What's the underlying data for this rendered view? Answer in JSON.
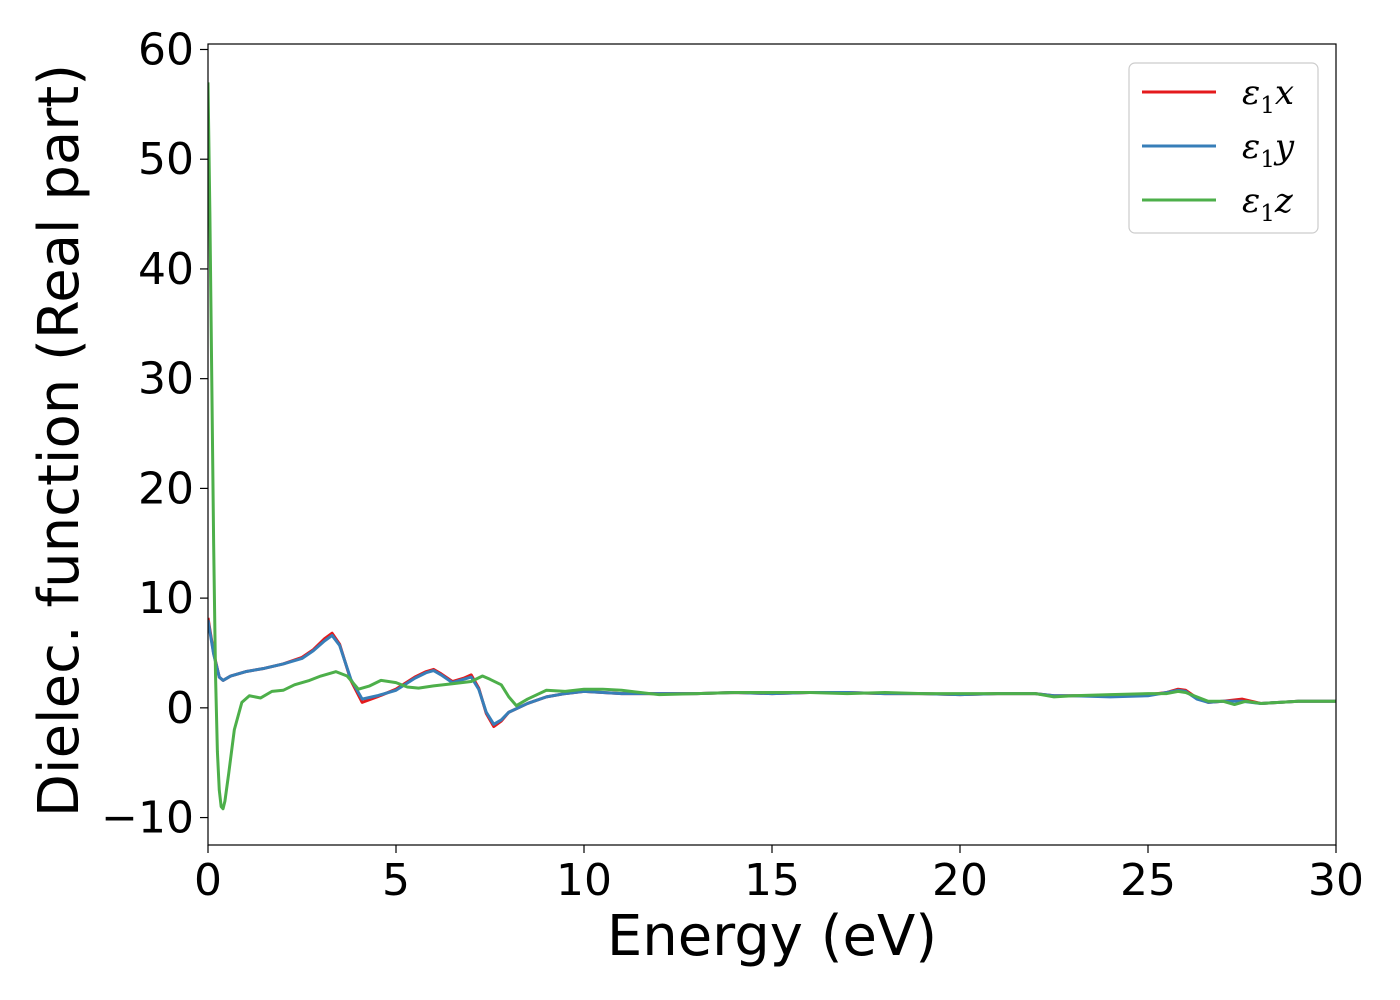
{
  "chart_data": {
    "type": "line",
    "title": "",
    "xlabel": "Energy (eV)",
    "ylabel": "Dielec. function (Real part)",
    "xlim": [
      0,
      30
    ],
    "ylim": [
      -12.5,
      60.5
    ],
    "xticks": [
      0,
      5,
      10,
      15,
      20,
      25,
      30
    ],
    "xtick_labels": [
      "0",
      "5",
      "10",
      "15",
      "20",
      "25",
      "30"
    ],
    "yticks": [
      -10,
      0,
      10,
      20,
      30,
      40,
      50,
      60
    ],
    "ytick_labels": [
      "−10",
      "0",
      "10",
      "20",
      "30",
      "40",
      "50",
      "60"
    ],
    "grid": false,
    "legend_position": "top-right",
    "series": [
      {
        "name": "ε₁x",
        "legend": {
          "base": "ε",
          "sub": "1",
          "var": "x"
        },
        "color": "#e41a1c",
        "x": [
          0.0,
          0.15,
          0.3,
          0.4,
          0.6,
          1.0,
          1.5,
          2.0,
          2.5,
          2.8,
          3.1,
          3.3,
          3.5,
          3.8,
          4.1,
          4.5,
          5.0,
          5.5,
          5.8,
          6.0,
          6.2,
          6.5,
          6.8,
          7.0,
          7.2,
          7.4,
          7.6,
          7.8,
          8.0,
          8.5,
          9.0,
          9.5,
          10.0,
          11.0,
          12.0,
          13.0,
          14.0,
          15.0,
          16.0,
          17.0,
          18.0,
          19.0,
          20.0,
          21.0,
          22.0,
          22.5,
          23.0,
          24.0,
          25.0,
          25.5,
          25.8,
          26.0,
          26.3,
          26.6,
          27.0,
          27.5,
          28.0,
          28.5,
          29.0,
          29.5,
          30.0
        ],
        "y": [
          8.2,
          5.0,
          2.8,
          2.5,
          2.9,
          3.3,
          3.6,
          4.0,
          4.6,
          5.3,
          6.3,
          6.8,
          5.8,
          2.5,
          0.5,
          1.0,
          1.7,
          2.8,
          3.3,
          3.5,
          3.1,
          2.4,
          2.7,
          3.0,
          1.8,
          -0.5,
          -1.7,
          -1.2,
          -0.4,
          0.4,
          1.0,
          1.3,
          1.5,
          1.3,
          1.3,
          1.3,
          1.4,
          1.3,
          1.4,
          1.4,
          1.3,
          1.3,
          1.2,
          1.3,
          1.3,
          1.1,
          1.1,
          1.1,
          1.2,
          1.4,
          1.7,
          1.6,
          0.9,
          0.5,
          0.6,
          0.8,
          0.4,
          0.5,
          0.6,
          0.6,
          0.6
        ]
      },
      {
        "name": "ε₁y",
        "legend": {
          "base": "ε",
          "sub": "1",
          "var": "y"
        },
        "color": "#377eb8",
        "x": [
          0.0,
          0.15,
          0.3,
          0.4,
          0.6,
          1.0,
          1.5,
          2.0,
          2.5,
          2.8,
          3.1,
          3.3,
          3.5,
          3.8,
          4.1,
          4.5,
          5.0,
          5.5,
          5.8,
          6.0,
          6.2,
          6.5,
          6.8,
          7.0,
          7.2,
          7.4,
          7.6,
          7.8,
          8.0,
          8.5,
          9.0,
          9.5,
          10.0,
          11.0,
          12.0,
          13.0,
          14.0,
          15.0,
          16.0,
          17.0,
          18.0,
          19.0,
          20.0,
          21.0,
          22.0,
          22.5,
          23.0,
          24.0,
          25.0,
          25.5,
          25.8,
          26.0,
          26.3,
          26.6,
          27.0,
          27.5,
          28.0,
          28.5,
          29.0,
          29.5,
          30.0
        ],
        "y": [
          8.0,
          4.9,
          2.8,
          2.5,
          2.9,
          3.3,
          3.6,
          4.0,
          4.5,
          5.2,
          6.1,
          6.6,
          5.7,
          2.6,
          0.8,
          1.1,
          1.6,
          2.7,
          3.2,
          3.4,
          3.0,
          2.3,
          2.6,
          2.8,
          1.7,
          -0.4,
          -1.5,
          -1.1,
          -0.4,
          0.4,
          1.0,
          1.3,
          1.5,
          1.3,
          1.3,
          1.3,
          1.4,
          1.3,
          1.4,
          1.4,
          1.3,
          1.3,
          1.2,
          1.3,
          1.3,
          1.1,
          1.1,
          1.0,
          1.1,
          1.4,
          1.6,
          1.5,
          0.8,
          0.5,
          0.6,
          0.6,
          0.4,
          0.5,
          0.6,
          0.6,
          0.6
        ]
      },
      {
        "name": "ε₁z",
        "legend": {
          "base": "ε",
          "sub": "1",
          "var": "z"
        },
        "color": "#4daf4a",
        "x": [
          0.0,
          0.05,
          0.1,
          0.15,
          0.2,
          0.25,
          0.3,
          0.35,
          0.4,
          0.45,
          0.55,
          0.7,
          0.9,
          1.1,
          1.4,
          1.7,
          2.0,
          2.3,
          2.7,
          3.0,
          3.4,
          3.7,
          4.0,
          4.3,
          4.6,
          5.0,
          5.3,
          5.6,
          6.0,
          6.5,
          7.0,
          7.3,
          7.5,
          7.8,
          8.0,
          8.2,
          8.5,
          9.0,
          9.5,
          10.0,
          10.5,
          11.0,
          11.5,
          12.0,
          13.0,
          14.0,
          15.0,
          16.0,
          17.0,
          18.0,
          19.0,
          20.0,
          21.0,
          22.0,
          22.5,
          23.0,
          24.0,
          25.0,
          25.5,
          25.8,
          26.0,
          26.3,
          26.6,
          27.0,
          27.3,
          27.6,
          28.0,
          28.5,
          29.0,
          29.5,
          30.0
        ],
        "y": [
          57.0,
          45.0,
          30.0,
          15.0,
          3.0,
          -4.0,
          -7.5,
          -9.0,
          -9.2,
          -8.5,
          -6.0,
          -2.0,
          0.5,
          1.1,
          0.9,
          1.5,
          1.6,
          2.1,
          2.5,
          2.9,
          3.3,
          2.9,
          1.7,
          2.0,
          2.5,
          2.3,
          1.9,
          1.8,
          2.0,
          2.2,
          2.4,
          2.9,
          2.6,
          2.1,
          1.0,
          0.2,
          0.8,
          1.6,
          1.5,
          1.7,
          1.7,
          1.6,
          1.4,
          1.2,
          1.3,
          1.4,
          1.4,
          1.4,
          1.3,
          1.4,
          1.3,
          1.3,
          1.3,
          1.3,
          1.0,
          1.1,
          1.2,
          1.3,
          1.3,
          1.5,
          1.4,
          1.0,
          0.6,
          0.6,
          0.3,
          0.6,
          0.4,
          0.5,
          0.6,
          0.6,
          0.6
        ]
      }
    ]
  }
}
